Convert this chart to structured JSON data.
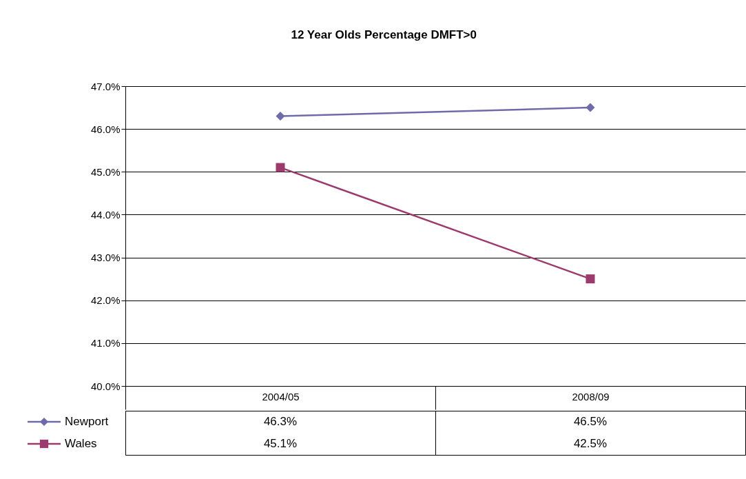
{
  "chart_data": {
    "type": "line",
    "title": "12 Year Olds Percentage DMFT>0",
    "categories": [
      "2004/05",
      "2008/09"
    ],
    "series": [
      {
        "name": "Newport",
        "color": "#6f6aaa",
        "marker": "diamond",
        "values": [
          46.3,
          46.5
        ],
        "value_labels": [
          "46.3%",
          "46.5%"
        ]
      },
      {
        "name": "Wales",
        "color": "#9b3a6c",
        "marker": "square",
        "values": [
          45.1,
          42.5
        ],
        "value_labels": [
          "45.1%",
          "42.5%"
        ]
      }
    ],
    "ylim": [
      40,
      47
    ],
    "yticks": [
      {
        "value": 40,
        "label": "40.0%"
      },
      {
        "value": 41,
        "label": "41.0%"
      },
      {
        "value": 42,
        "label": "42.0%"
      },
      {
        "value": 43,
        "label": "43.0%"
      },
      {
        "value": 44,
        "label": "44.0%"
      },
      {
        "value": 45,
        "label": "45.0%"
      },
      {
        "value": 46,
        "label": "46.0%"
      },
      {
        "value": 47,
        "label": "47.0%"
      }
    ],
    "grid": "y",
    "legend": "bottom left"
  }
}
